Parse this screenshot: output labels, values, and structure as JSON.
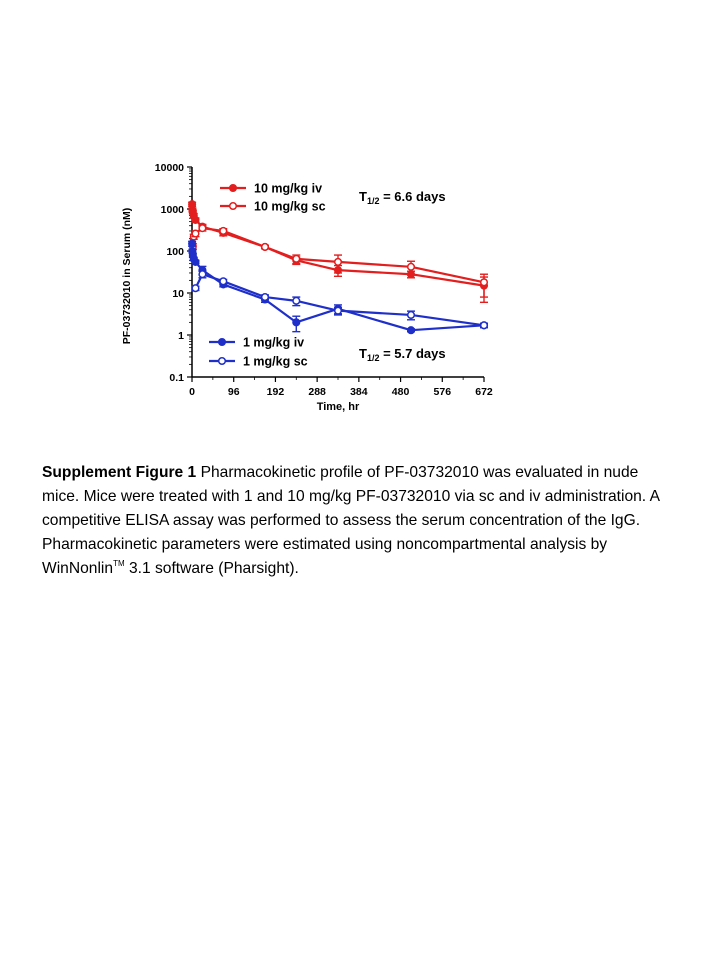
{
  "chart_data": {
    "type": "line",
    "xlabel": "Time, hr",
    "ylabel": "PF-03732010 in Serum (nM)",
    "y_scale": "log",
    "xlim": [
      0,
      672
    ],
    "ylim": [
      0.1,
      10000
    ],
    "x_ticks": [
      0,
      96,
      192,
      288,
      384,
      480,
      576,
      672
    ],
    "y_ticks": [
      0.1,
      1,
      10,
      100,
      1000,
      10000
    ],
    "y_tick_labels": [
      "0.1",
      "1",
      "10",
      "100",
      "1000",
      "10000"
    ],
    "legend_position": "top-left and bottom-left",
    "grid": false,
    "series": [
      {
        "name": "10 mg/kg iv",
        "color": "#e31e1e",
        "marker": "filled-circle",
        "points": [
          {
            "x": 0.25,
            "y": 1300,
            "e": 150
          },
          {
            "x": 1,
            "y": 950,
            "e": 100
          },
          {
            "x": 2,
            "y": 850,
            "e": 90
          },
          {
            "x": 4,
            "y": 700,
            "e": 80
          },
          {
            "x": 8,
            "y": 550,
            "e": 60
          },
          {
            "x": 24,
            "y": 380,
            "e": 50
          },
          {
            "x": 72,
            "y": 270,
            "e": 40
          },
          {
            "x": 168,
            "y": 125,
            "e": 12
          },
          {
            "x": 240,
            "y": 60,
            "e": 12
          },
          {
            "x": 336,
            "y": 35,
            "e": 10
          },
          {
            "x": 504,
            "y": 28,
            "e": 5
          },
          {
            "x": 672,
            "y": 15,
            "e": 9
          }
        ]
      },
      {
        "name": "10 mg/kg sc",
        "color": "#e31e1e",
        "marker": "open-circle",
        "points": [
          {
            "x": 2,
            "y": 130,
            "e": 20
          },
          {
            "x": 4,
            "y": 220,
            "e": 30
          },
          {
            "x": 8,
            "y": 260,
            "e": 40
          },
          {
            "x": 24,
            "y": 350,
            "e": 50
          },
          {
            "x": 72,
            "y": 300,
            "e": 40
          },
          {
            "x": 168,
            "y": 125,
            "e": 12
          },
          {
            "x": 240,
            "y": 65,
            "e": 15
          },
          {
            "x": 336,
            "y": 55,
            "e": 25
          },
          {
            "x": 504,
            "y": 42,
            "e": 15
          },
          {
            "x": 672,
            "y": 18,
            "e": 10
          }
        ]
      },
      {
        "name": "1 mg/kg iv",
        "color": "#1f2fc9",
        "marker": "filled-circle",
        "points": [
          {
            "x": 0.25,
            "y": 150,
            "e": 20
          },
          {
            "x": 1,
            "y": 100,
            "e": 10
          },
          {
            "x": 2,
            "y": 80,
            "e": 8
          },
          {
            "x": 4,
            "y": 65,
            "e": 6
          },
          {
            "x": 8,
            "y": 55,
            "e": 5
          },
          {
            "x": 24,
            "y": 35,
            "e": 8
          },
          {
            "x": 72,
            "y": 16,
            "e": 2
          },
          {
            "x": 168,
            "y": 7,
            "e": 1
          },
          {
            "x": 240,
            "y": 2,
            "e": 0.8
          },
          {
            "x": 336,
            "y": 4.2,
            "e": 1
          },
          {
            "x": 504,
            "y": 1.3,
            "e": 0.1
          },
          {
            "x": 672,
            "y": 1.7,
            "e": 0.2
          }
        ]
      },
      {
        "name": "1 mg/kg sc",
        "color": "#1f2fc9",
        "marker": "open-circle",
        "points": [
          {
            "x": 8,
            "y": 13,
            "e": 1.5
          },
          {
            "x": 24,
            "y": 28,
            "e": 5
          },
          {
            "x": 72,
            "y": 19,
            "e": 2
          },
          {
            "x": 168,
            "y": 8,
            "e": 1
          },
          {
            "x": 240,
            "y": 6.5,
            "e": 1.5
          },
          {
            "x": 336,
            "y": 3.8,
            "e": 0.8
          },
          {
            "x": 504,
            "y": 3,
            "e": 0.7
          },
          {
            "x": 672,
            "y": 1.7,
            "e": 0.2
          }
        ]
      }
    ],
    "annotations": [
      {
        "group": "10 mg/kg",
        "main": "T",
        "sub": "1/2",
        "rest": " = 6.6 days"
      },
      {
        "group": "1 mg/kg",
        "main": "T",
        "sub": "1/2",
        "rest": " = 5.7 days"
      }
    ]
  },
  "caption": {
    "label": "Supplement Figure 1",
    "text_before_tm": " Pharmacokinetic profile of PF-03732010 was evaluated in nude mice.  Mice were treated with 1 and 10 mg/kg PF-03732010 via sc and iv administration.  A competitive ELISA assay was performed to assess the serum concentration of the IgG. Pharmacokinetic parameters were estimated using noncompartmental analysis by WinNonlin",
    "tm": "TM",
    "text_after_tm": " 3.1 software (Pharsight)."
  }
}
